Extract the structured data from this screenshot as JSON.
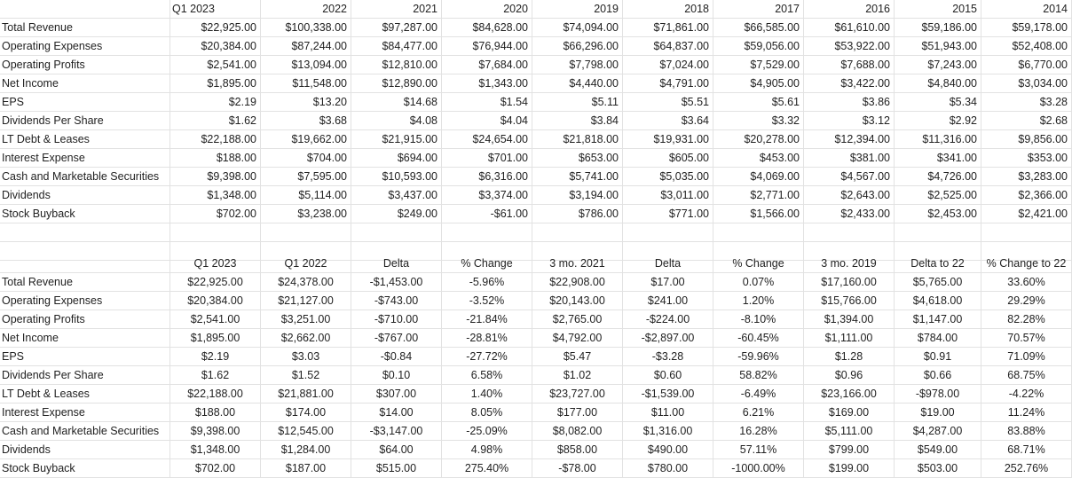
{
  "table1": {
    "headers": [
      "",
      "Q1 2023",
      "2022",
      "2021",
      "2020",
      "2019",
      "2018",
      "2017",
      "2016",
      "2015",
      "2014"
    ],
    "rows": [
      [
        "Total Revenue",
        "$22,925.00",
        "$100,338.00",
        "$97,287.00",
        "$84,628.00",
        "$74,094.00",
        "$71,861.00",
        "$66,585.00",
        "$61,610.00",
        "$59,186.00",
        "$59,178.00"
      ],
      [
        "Operating Expenses",
        "$20,384.00",
        "$87,244.00",
        "$84,477.00",
        "$76,944.00",
        "$66,296.00",
        "$64,837.00",
        "$59,056.00",
        "$53,922.00",
        "$51,943.00",
        "$52,408.00"
      ],
      [
        "Operating Profits",
        "$2,541.00",
        "$13,094.00",
        "$12,810.00",
        "$7,684.00",
        "$7,798.00",
        "$7,024.00",
        "$7,529.00",
        "$7,688.00",
        "$7,243.00",
        "$6,770.00"
      ],
      [
        "Net Income",
        "$1,895.00",
        "$11,548.00",
        "$12,890.00",
        "$1,343.00",
        "$4,440.00",
        "$4,791.00",
        "$4,905.00",
        "$3,422.00",
        "$4,840.00",
        "$3,034.00"
      ],
      [
        "EPS",
        "$2.19",
        "$13.20",
        "$14.68",
        "$1.54",
        "$5.11",
        "$5.51",
        "$5.61",
        "$3.86",
        "$5.34",
        "$3.28"
      ],
      [
        "Dividends Per Share",
        "$1.62",
        "$3.68",
        "$4.08",
        "$4.04",
        "$3.84",
        "$3.64",
        "$3.32",
        "$3.12",
        "$2.92",
        "$2.68"
      ],
      [
        "LT Debt & Leases",
        "$22,188.00",
        "$19,662.00",
        "$21,915.00",
        "$24,654.00",
        "$21,818.00",
        "$19,931.00",
        "$20,278.00",
        "$12,394.00",
        "$11,316.00",
        "$9,856.00"
      ],
      [
        "Interest Expense",
        "$188.00",
        "$704.00",
        "$694.00",
        "$701.00",
        "$653.00",
        "$605.00",
        "$453.00",
        "$381.00",
        "$341.00",
        "$353.00"
      ],
      [
        "Cash and Marketable Securities",
        "$9,398.00",
        "$7,595.00",
        "$10,593.00",
        "$6,316.00",
        "$5,741.00",
        "$5,035.00",
        "$4,069.00",
        "$4,567.00",
        "$4,726.00",
        "$3,283.00"
      ],
      [
        "Dividends",
        "$1,348.00",
        "$5,114.00",
        "$3,437.00",
        "$3,374.00",
        "$3,194.00",
        "$3,011.00",
        "$2,771.00",
        "$2,643.00",
        "$2,525.00",
        "$2,366.00"
      ],
      [
        "Stock Buyback",
        "$702.00",
        "$3,238.00",
        "$249.00",
        "-$61.00",
        "$786.00",
        "$771.00",
        "$1,566.00",
        "$2,433.00",
        "$2,453.00",
        "$2,421.00"
      ]
    ]
  },
  "table2": {
    "headers": [
      "",
      "Q1 2023",
      "Q1 2022",
      "Delta",
      "% Change",
      "3 mo. 2021",
      "Delta",
      "% Change",
      "3 mo. 2019",
      "Delta to 22",
      "% Change to 22"
    ],
    "rows": [
      [
        "Total Revenue",
        "$22,925.00",
        "$24,378.00",
        "-$1,453.00",
        "-5.96%",
        "$22,908.00",
        "$17.00",
        "0.07%",
        "$17,160.00",
        "$5,765.00",
        "33.60%"
      ],
      [
        "Operating Expenses",
        "$20,384.00",
        "$21,127.00",
        "-$743.00",
        "-3.52%",
        "$20,143.00",
        "$241.00",
        "1.20%",
        "$15,766.00",
        "$4,618.00",
        "29.29%"
      ],
      [
        "Operating Profits",
        "$2,541.00",
        "$3,251.00",
        "-$710.00",
        "-21.84%",
        "$2,765.00",
        "-$224.00",
        "-8.10%",
        "$1,394.00",
        "$1,147.00",
        "82.28%"
      ],
      [
        "Net Income",
        "$1,895.00",
        "$2,662.00",
        "-$767.00",
        "-28.81%",
        "$4,792.00",
        "-$2,897.00",
        "-60.45%",
        "$1,111.00",
        "$784.00",
        "70.57%"
      ],
      [
        "EPS",
        "$2.19",
        "$3.03",
        "-$0.84",
        "-27.72%",
        "$5.47",
        "-$3.28",
        "-59.96%",
        "$1.28",
        "$0.91",
        "71.09%"
      ],
      [
        "Dividends Per Share",
        "$1.62",
        "$1.52",
        "$0.10",
        "6.58%",
        "$1.02",
        "$0.60",
        "58.82%",
        "$0.96",
        "$0.66",
        "68.75%"
      ],
      [
        "LT Debt & Leases",
        "$22,188.00",
        "$21,881.00",
        "$307.00",
        "1.40%",
        "$23,727.00",
        "-$1,539.00",
        "-6.49%",
        "$23,166.00",
        "-$978.00",
        "-4.22%"
      ],
      [
        "Interest Expense",
        "$188.00",
        "$174.00",
        "$14.00",
        "8.05%",
        "$177.00",
        "$11.00",
        "6.21%",
        "$169.00",
        "$19.00",
        "11.24%"
      ],
      [
        "Cash and Marketable Securities",
        "$9,398.00",
        "$12,545.00",
        "-$3,147.00",
        "-25.09%",
        "$8,082.00",
        "$1,316.00",
        "16.28%",
        "$5,111.00",
        "$4,287.00",
        "83.88%"
      ],
      [
        "Dividends",
        "$1,348.00",
        "$1,284.00",
        "$64.00",
        "4.98%",
        "$858.00",
        "$490.00",
        "57.11%",
        "$799.00",
        "$549.00",
        "68.71%"
      ],
      [
        "Stock Buyback",
        "$702.00",
        "$187.00",
        "$515.00",
        "275.40%",
        "-$78.00",
        "$780.00",
        "-1000.00%",
        "$199.00",
        "$503.00",
        "252.76%"
      ]
    ]
  }
}
